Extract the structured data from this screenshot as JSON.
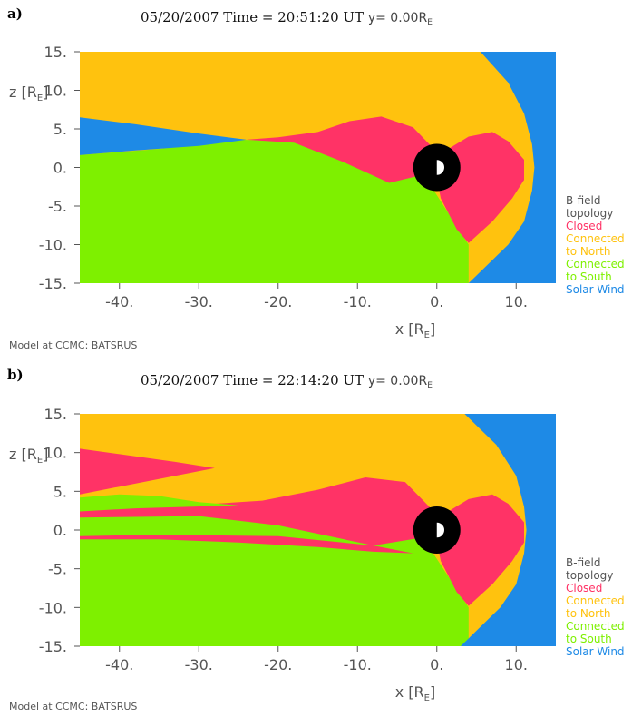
{
  "panels": [
    {
      "letter": "a)",
      "title_date": "05/20/2007",
      "title_time": "Time = 20:51:20 UT",
      "title_y": "y= 0.00R",
      "title_y_sub": "E"
    },
    {
      "letter": "b)",
      "title_date": "05/20/2007",
      "title_time": "Time = 22:14:20 UT",
      "title_y": "y= 0.00R",
      "title_y_sub": "E"
    }
  ],
  "axes": {
    "xlabel": "x",
    "ylabel": "z",
    "unit": "R",
    "unit_sub": "E",
    "xticks": [
      "-40.",
      "-30.",
      "-20.",
      "-10.",
      "0.",
      "10."
    ],
    "yticks": [
      "15.",
      "10.",
      "5.",
      "0.",
      "-5.",
      "-10.",
      "-15."
    ]
  },
  "legend": {
    "title_line1": "B-field",
    "title_line2": "topology",
    "items": [
      {
        "line1": "Closed",
        "line2": "",
        "color": "#ff3366"
      },
      {
        "line1": "Connected",
        "line2": "to North",
        "color": "#ffc20e"
      },
      {
        "line1": "Connected",
        "line2": "to South",
        "color": "#7ef000"
      },
      {
        "line1": "Solar Wind",
        "line2": "",
        "color": "#1e8ae6"
      }
    ]
  },
  "model_text": "Model at CCMC: BATSRUS",
  "chart_data": [
    {
      "type": "heatmap",
      "title": "05/20/2007 Time = 20:51:20 UT y= 0.00R_E",
      "xlabel": "x [R_E]",
      "ylabel": "z [R_E]",
      "xlim": [
        -45,
        15
      ],
      "ylim": [
        -15,
        15
      ],
      "categories": [
        "Closed",
        "Connected to North",
        "Connected to South",
        "Solar Wind"
      ],
      "colors": [
        "#ff3366",
        "#ffc20e",
        "#7ef000",
        "#1e8ae6"
      ],
      "legend": "right",
      "regions": {
        "solar_wind_tail": [
          [
            -45,
            6.5
          ],
          [
            -38,
            5.6
          ],
          [
            -30,
            4.4
          ],
          [
            -24,
            3.6
          ],
          [
            -30,
            2.8
          ],
          [
            -38,
            2.2
          ],
          [
            -45,
            1.6
          ]
        ],
        "south_boundary": [
          [
            -45,
            1.6
          ],
          [
            -35,
            2.4
          ],
          [
            -25,
            3.6
          ],
          [
            -18,
            3.4
          ],
          [
            -12,
            2.0
          ],
          [
            -6,
            0.6
          ],
          [
            -2,
            -0.4
          ]
        ],
        "closed_tail": [
          [
            -24,
            3.6
          ],
          [
            -20,
            3.9
          ],
          [
            -15,
            4.6
          ],
          [
            -11,
            6.0
          ],
          [
            -7,
            6.6
          ],
          [
            -3,
            5.2
          ],
          [
            0,
            2.0
          ],
          [
            -2,
            -1.0
          ],
          [
            -6,
            -2.0
          ],
          [
            -12,
            0.8
          ],
          [
            -18,
            3.2
          ]
        ],
        "closed_dayside": [
          [
            0,
            1.5
          ],
          [
            4,
            4.0
          ],
          [
            7,
            4.6
          ],
          [
            9,
            3.4
          ],
          [
            11,
            1.0
          ],
          [
            11,
            -1.6
          ],
          [
            9.5,
            -4.0
          ],
          [
            7,
            -7.0
          ],
          [
            4,
            -9.8
          ],
          [
            2.5,
            -8.0
          ],
          [
            0.5,
            -4.0
          ],
          [
            0,
            -1.5
          ]
        ],
        "magnetopause": [
          [
            5.5,
            15
          ],
          [
            9,
            11
          ],
          [
            11,
            7
          ],
          [
            12,
            3
          ],
          [
            12.3,
            0
          ],
          [
            12,
            -3
          ],
          [
            11,
            -7
          ],
          [
            9,
            -10
          ],
          [
            6,
            -13
          ],
          [
            4,
            -15
          ]
        ]
      }
    },
    {
      "type": "heatmap",
      "title": "05/20/2007 Time = 22:14:20 UT y= 0.00R_E",
      "xlabel": "x [R_E]",
      "ylabel": "z [R_E]",
      "xlim": [
        -45,
        15
      ],
      "ylim": [
        -15,
        15
      ],
      "categories": [
        "Closed",
        "Connected to North",
        "Connected to South",
        "Solar Wind"
      ],
      "colors": [
        "#ff3366",
        "#ffc20e",
        "#7ef000",
        "#1e8ae6"
      ],
      "legend": "right",
      "regions": {
        "closed_hook": [
          [
            -45,
            10.5
          ],
          [
            -40,
            9.8
          ],
          [
            -33,
            8.8
          ],
          [
            -28,
            8.0
          ],
          [
            -34,
            6.8
          ],
          [
            -40,
            5.6
          ],
          [
            -45,
            4.6
          ]
        ],
        "green_wedge": [
          [
            -45,
            4.2
          ],
          [
            -40,
            4.6
          ],
          [
            -35,
            4.4
          ],
          [
            -30,
            3.6
          ],
          [
            -25,
            3.2
          ],
          [
            -38,
            2.8
          ],
          [
            -45,
            2.4
          ]
        ],
        "closed_tail_upper": [
          [
            -45,
            2.6
          ],
          [
            -35,
            3.0
          ],
          [
            -28,
            3.4
          ],
          [
            -22,
            3.8
          ],
          [
            -15,
            5.2
          ],
          [
            -9,
            6.8
          ],
          [
            -4,
            6.2
          ],
          [
            0,
            2.0
          ],
          [
            -2,
            -1.0
          ],
          [
            -8,
            -2.0
          ],
          [
            -20,
            0.6
          ],
          [
            -30,
            1.8
          ],
          [
            -45,
            1.6
          ]
        ],
        "closed_tail_lower": [
          [
            -45,
            -1.2
          ],
          [
            -35,
            -1.2
          ],
          [
            -25,
            -1.6
          ],
          [
            -15,
            -2.2
          ],
          [
            -8,
            -2.8
          ],
          [
            -3,
            -3.0
          ],
          [
            -8,
            -2.0
          ],
          [
            -20,
            -0.8
          ],
          [
            -35,
            -0.6
          ],
          [
            -45,
            -0.8
          ]
        ],
        "closed_dayside": [
          [
            0,
            1.5
          ],
          [
            4,
            4.0
          ],
          [
            7,
            4.6
          ],
          [
            9,
            3.4
          ],
          [
            11,
            1.0
          ],
          [
            11,
            -1.6
          ],
          [
            9.5,
            -4.0
          ],
          [
            7,
            -7.0
          ],
          [
            4,
            -9.8
          ],
          [
            2.5,
            -8.0
          ],
          [
            0.5,
            -4.0
          ],
          [
            0,
            -1.5
          ]
        ],
        "magnetopause": [
          [
            3.5,
            15
          ],
          [
            7.5,
            11
          ],
          [
            10,
            7
          ],
          [
            11,
            3
          ],
          [
            11.3,
            0
          ],
          [
            11,
            -3
          ],
          [
            10,
            -7
          ],
          [
            8,
            -10
          ],
          [
            5,
            -13
          ],
          [
            3,
            -15
          ]
        ]
      }
    }
  ]
}
